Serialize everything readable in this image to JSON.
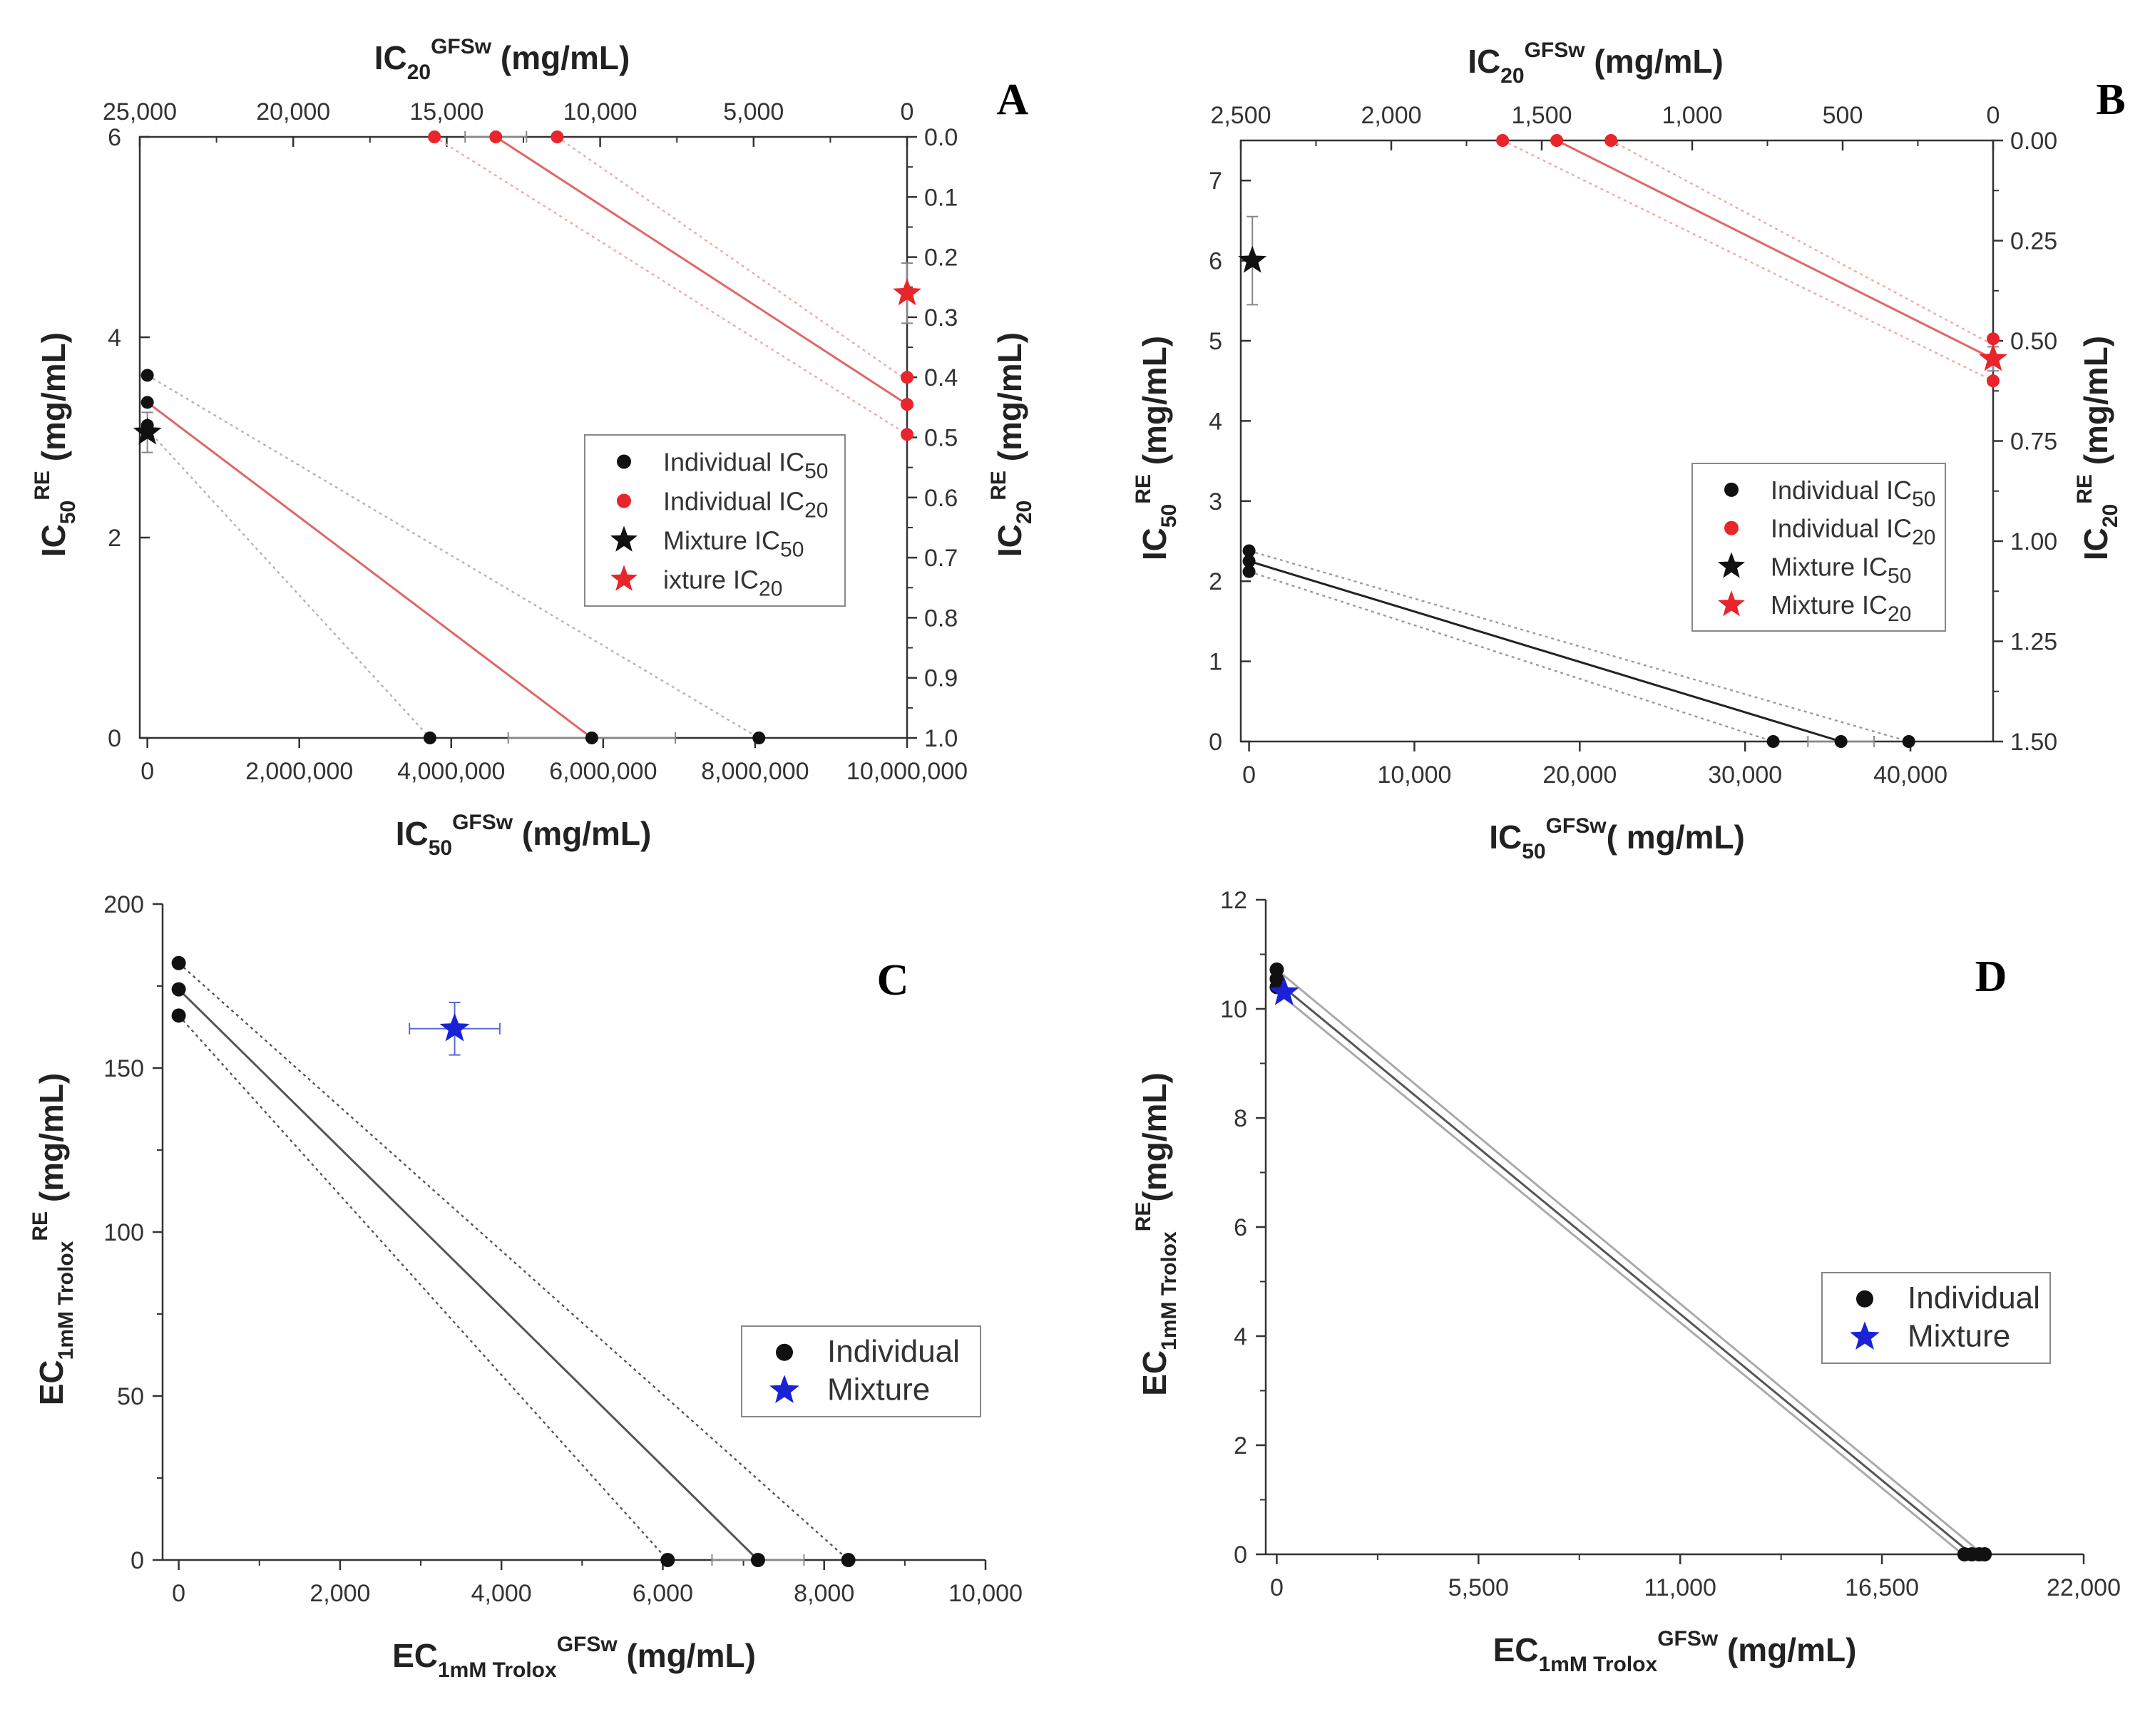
{
  "chart_data": [
    {
      "panel": "A",
      "type": "scatter",
      "title": "IC20GFSw (mg/mL)",
      "xlabel": "IC50GFSw (mg/mL)",
      "ylabel": "IC50RE (mg/mL)",
      "x2label": "IC20GFSw (mg/mL)",
      "y2label": "IC20RE (mg/mL)",
      "label_parts": {
        "top": [
          "IC",
          "20",
          "GFSw",
          " (mg/mL)"
        ],
        "bottom": [
          "IC",
          "50",
          "GFSw",
          " (mg/mL)"
        ],
        "left": [
          "IC",
          "50",
          "RE",
          " (mg/mL)"
        ],
        "right": [
          "IC",
          "20",
          "RE",
          " (mg/mL)"
        ]
      },
      "xlim": [
        -100000,
        10000000
      ],
      "ylim": [
        0,
        6
      ],
      "x2lim": [
        25000,
        0
      ],
      "y2lim": [
        1.0,
        0.0
      ],
      "x_ticks": [
        0,
        2000000,
        4000000,
        6000000,
        8000000,
        10000000
      ],
      "x_ticklabels": [
        "0",
        "2,000,000",
        "4,000,000",
        "6,000,000",
        "8,000,000",
        "10,000,000"
      ],
      "y_ticks": [
        0,
        2,
        4,
        6
      ],
      "y_ticklabels": [
        "0",
        "2",
        "4",
        "6"
      ],
      "x2_ticks": [
        25000,
        20000,
        15000,
        10000,
        5000,
        0
      ],
      "x2_ticklabels": [
        "25,000",
        "20,000",
        "15,000",
        "10,000",
        "5,000",
        "0"
      ],
      "y2_ticks": [
        0.0,
        0.1,
        0.2,
        0.3,
        0.4,
        0.5,
        0.6,
        0.7,
        0.8,
        0.9,
        1.0
      ],
      "y2_ticklabels": [
        "0.0",
        "0.1",
        "0.2",
        "0.3",
        "0.4",
        "0.5",
        "0.6",
        "0.7",
        "0.8",
        "0.9",
        "1.0"
      ],
      "lines": [
        {
          "axes": "primary",
          "role": "isobole-ic50",
          "color": "#e06666",
          "style": "solid",
          "from": [
            0,
            3.35
          ],
          "to": [
            5850000,
            0
          ]
        },
        {
          "axes": "primary",
          "role": "ci-ic50",
          "color": "#b4b4b4",
          "style": "dotted",
          "from": [
            0,
            3.62
          ],
          "to": [
            8050000,
            0
          ]
        },
        {
          "axes": "primary",
          "role": "ci-ic50",
          "color": "#b4b4b4",
          "style": "dotted",
          "from": [
            0,
            3.08
          ],
          "to": [
            3720000,
            0
          ]
        },
        {
          "axes": "secondary",
          "role": "isobole-ic20",
          "color": "#e06666",
          "style": "solid",
          "from": [
            13400,
            0.0
          ],
          "to": [
            0,
            0.445
          ]
        },
        {
          "axes": "secondary",
          "role": "ci-ic20",
          "color": "#f2a8a8",
          "style": "dotted",
          "from": [
            11400,
            0.0
          ],
          "to": [
            0,
            0.405
          ]
        },
        {
          "axes": "secondary",
          "role": "ci-ic20",
          "color": "#f2a8a8",
          "style": "dotted",
          "from": [
            15400,
            0.0
          ],
          "to": [
            0,
            0.495
          ]
        }
      ],
      "series": [
        {
          "name": "Individual IC50",
          "axes": "primary",
          "marker": "circle",
          "color": "#111111",
          "x": [
            3720000,
            5850000,
            8050000,
            0,
            0,
            0
          ],
          "y": [
            0,
            0,
            0,
            3.62,
            3.35,
            3.12
          ],
          "xerr": [
            0,
            1100000,
            0,
            0,
            0,
            0
          ],
          "yerr": [
            0,
            0,
            0,
            0,
            0,
            0
          ]
        },
        {
          "name": "Individual IC20",
          "axes": "secondary",
          "marker": "circle",
          "color": "#e8252b",
          "x": [
            15400,
            13400,
            11400,
            0,
            0,
            0
          ],
          "y": [
            0,
            0,
            0,
            0.4,
            0.445,
            0.495
          ],
          "xerr": [
            0,
            1000,
            0,
            0,
            0,
            0
          ],
          "yerr": [
            0,
            0,
            0,
            0,
            0,
            0
          ]
        },
        {
          "name": "Mixture IC50",
          "axes": "primary",
          "marker": "star",
          "color": "#111111",
          "x": [
            0
          ],
          "y": [
            3.05
          ],
          "xerr": [
            0
          ],
          "yerr": [
            0.2
          ]
        },
        {
          "name": "ixture IC20",
          "axes": "secondary",
          "marker": "star",
          "color": "#e8252b",
          "x": [
            0
          ],
          "y": [
            0.26
          ],
          "xerr": [
            0
          ],
          "yerr": [
            0.05
          ]
        }
      ],
      "legend": [
        "Individual IC50",
        "Individual IC20",
        "Mixture IC50",
        "ixture IC20"
      ],
      "legend_placement": "center-right",
      "grid": false
    },
    {
      "panel": "B",
      "type": "scatter",
      "title": "IC20GFSw (mg/mL)",
      "xlabel": "IC50GFSw( mg/mL)",
      "ylabel": "IC50RE (mg/mL)",
      "x2label": "IC20GFSw (mg/mL)",
      "y2label": "IC20RE (mg/mL)",
      "label_parts": {
        "top": [
          "IC",
          "20",
          "GFSw",
          " (mg/mL)"
        ],
        "bottom": [
          "IC",
          "50",
          "GFSw",
          "( mg/mL)"
        ],
        "left": [
          "IC",
          "50",
          "RE",
          " (mg/mL)"
        ],
        "right": [
          "IC",
          "20",
          "RE",
          " (mg/mL)"
        ]
      },
      "xlim": [
        -500,
        45000
      ],
      "ylim": [
        0,
        7.5
      ],
      "x2lim": [
        2500,
        0
      ],
      "y2lim": [
        1.5,
        0.0
      ],
      "x_ticks": [
        0,
        10000,
        20000,
        30000,
        40000
      ],
      "x_ticklabels": [
        "0",
        "10,000",
        "20,000",
        "30,000",
        "40,000"
      ],
      "y_ticks": [
        0,
        1,
        2,
        3,
        4,
        5,
        6,
        7
      ],
      "y_ticklabels": [
        "0",
        "1",
        "2",
        "3",
        "4",
        "5",
        "6",
        "7"
      ],
      "x2_ticks": [
        2500,
        2000,
        1500,
        1000,
        500,
        0
      ],
      "x2_ticklabels": [
        "2,500",
        "2,000",
        "1,500",
        "1,000",
        "500",
        "0"
      ],
      "y2_ticks": [
        0.0,
        0.25,
        0.5,
        0.75,
        1.0,
        1.25,
        1.5
      ],
      "y2_ticklabels": [
        "0.00",
        "0.25",
        "0.50",
        "0.75",
        "1.00",
        "1.25",
        "1.50"
      ],
      "lines": [
        {
          "axes": "primary",
          "role": "isobole-ic50",
          "color": "#222222",
          "style": "solid",
          "from": [
            0,
            2.25
          ],
          "to": [
            35800,
            0
          ]
        },
        {
          "axes": "primary",
          "role": "ci-ic50",
          "color": "#9a9a9a",
          "style": "dotted",
          "from": [
            0,
            2.38
          ],
          "to": [
            39900,
            0
          ]
        },
        {
          "axes": "primary",
          "role": "ci-ic50",
          "color": "#9a9a9a",
          "style": "dotted",
          "from": [
            0,
            2.12
          ],
          "to": [
            31700,
            0
          ]
        },
        {
          "axes": "secondary",
          "role": "isobole-ic20",
          "color": "#e06666",
          "style": "solid",
          "from": [
            1450,
            0.0
          ],
          "to": [
            0,
            0.545
          ]
        },
        {
          "axes": "secondary",
          "role": "ci-ic20",
          "color": "#f2a8a8",
          "style": "dotted",
          "from": [
            1270,
            0.0
          ],
          "to": [
            0,
            0.51
          ]
        },
        {
          "axes": "secondary",
          "role": "ci-ic20",
          "color": "#f2a8a8",
          "style": "dotted",
          "from": [
            1630,
            0.0
          ],
          "to": [
            0,
            0.6
          ]
        }
      ],
      "series": [
        {
          "name": "Individual IC50",
          "axes": "primary",
          "marker": "circle",
          "color": "#111111",
          "x": [
            31700,
            35800,
            39900,
            0,
            0,
            0
          ],
          "y": [
            0,
            0,
            0,
            2.38,
            2.25,
            2.12
          ],
          "xerr": [
            0,
            2000,
            0,
            0,
            0,
            0
          ],
          "yerr": [
            0,
            0,
            0,
            0,
            0,
            0
          ]
        },
        {
          "name": "Individual IC20",
          "axes": "secondary",
          "marker": "circle",
          "color": "#e8252b",
          "x": [
            1630,
            1450,
            1270,
            0,
            0,
            0
          ],
          "y": [
            0,
            0,
            0,
            0.495,
            0.545,
            0.6
          ],
          "xerr": [
            0,
            0,
            0,
            0,
            0,
            0
          ],
          "yerr": [
            0,
            0,
            0,
            0,
            0,
            0
          ]
        },
        {
          "name": "Mixture IC50",
          "axes": "primary",
          "marker": "star",
          "color": "#111111",
          "x": [
            200
          ],
          "y": [
            6.0
          ],
          "xerr": [
            0
          ],
          "yerr": [
            0.55
          ]
        },
        {
          "name": "Mixture IC20",
          "axes": "secondary",
          "marker": "star",
          "color": "#e8252b",
          "x": [
            0
          ],
          "y": [
            0.545
          ],
          "xerr": [
            0
          ],
          "yerr": [
            0.03
          ]
        }
      ],
      "legend": [
        "Individual IC50",
        "Individual IC20",
        "Mixture IC50",
        "Mixture IC20"
      ],
      "legend_placement": "center-right",
      "grid": false
    },
    {
      "panel": "C",
      "type": "scatter",
      "xlabel": "EC1mM TroloxGFSw (mg/mL)",
      "ylabel": "EC1mM TroloxRE (mg/mL)",
      "label_parts": {
        "bottom": [
          "EC",
          "1mM Trolox",
          "GFSw",
          " (mg/mL)"
        ],
        "left": [
          "EC",
          "1mM Trolox",
          "RE",
          " (mg/mL)"
        ]
      },
      "xlim": [
        -200,
        10000
      ],
      "ylim": [
        0,
        200
      ],
      "x_ticks": [
        0,
        2000,
        4000,
        6000,
        8000,
        10000
      ],
      "x_ticklabels": [
        "0",
        "2,000",
        "4,000",
        "6,000",
        "8,000",
        "10,000"
      ],
      "y_ticks": [
        0,
        50,
        100,
        150,
        200
      ],
      "y_ticklabels": [
        "0",
        "50",
        "100",
        "150",
        "200"
      ],
      "lines": [
        {
          "axes": "primary",
          "role": "isobole",
          "color": "#555555",
          "style": "solid",
          "from": [
            0,
            174
          ],
          "to": [
            7180,
            0
          ]
        },
        {
          "axes": "primary",
          "role": "ci",
          "color": "#555555",
          "style": "dotted",
          "from": [
            0,
            182
          ],
          "to": [
            8300,
            0
          ]
        },
        {
          "axes": "primary",
          "role": "ci",
          "color": "#555555",
          "style": "dotted",
          "from": [
            0,
            166
          ],
          "to": [
            6060,
            0
          ]
        }
      ],
      "series": [
        {
          "name": "Individual",
          "axes": "primary",
          "marker": "circle",
          "color": "#111111",
          "x": [
            6060,
            7180,
            8300,
            0,
            0,
            0
          ],
          "y": [
            0,
            0,
            0,
            182,
            174,
            166
          ],
          "xerr": [
            0,
            570,
            0,
            0,
            0,
            0
          ],
          "yerr": [
            0,
            0,
            0,
            0,
            0,
            0
          ]
        },
        {
          "name": "Mixture",
          "axes": "primary",
          "marker": "star",
          "color": "#1a22d6",
          "x": [
            3420
          ],
          "y": [
            162
          ],
          "xerr": [
            560
          ],
          "yerr": [
            8
          ]
        }
      ],
      "legend": [
        "Individual",
        "Mixture"
      ],
      "legend_placement": "center-right",
      "grid": false
    },
    {
      "panel": "D",
      "type": "scatter",
      "xlabel": "EC1mM TroloxGFSw (mg/mL)",
      "ylabel": "EC1mM TroloxRE(mg/mL)",
      "label_parts": {
        "bottom": [
          "EC",
          "1mM Trolox",
          "GFSw",
          " (mg/mL)"
        ],
        "left": [
          "EC",
          "1mM Trolox",
          "RE",
          "(mg/mL)"
        ]
      },
      "xlim": [
        -300,
        22000
      ],
      "ylim": [
        0,
        12
      ],
      "x_ticks": [
        0,
        5500,
        11000,
        16500,
        22000
      ],
      "x_ticklabels": [
        "0",
        "5,500",
        "11,000",
        "16,500",
        "22,000"
      ],
      "y_ticks": [
        0,
        2,
        4,
        6,
        8,
        10,
        12
      ],
      "y_ticklabels": [
        "0",
        "2",
        "4",
        "6",
        "8",
        "10",
        "12"
      ],
      "lines": [
        {
          "axes": "primary",
          "role": "isobole",
          "color": "#555555",
          "style": "solid",
          "from": [
            0,
            10.5
          ],
          "to": [
            18950,
            0
          ]
        },
        {
          "axes": "primary",
          "role": "ci",
          "color": "#aaaaaa",
          "style": "solid",
          "from": [
            0,
            10.72
          ],
          "to": [
            19250,
            0
          ]
        },
        {
          "axes": "primary",
          "role": "ci",
          "color": "#aaaaaa",
          "style": "solid",
          "from": [
            0,
            10.32
          ],
          "to": [
            18700,
            0
          ]
        }
      ],
      "series": [
        {
          "name": "Individual",
          "axes": "primary",
          "marker": "circle",
          "color": "#111111",
          "x": [
            18750,
            18950,
            19150,
            19300,
            0,
            0,
            0
          ],
          "y": [
            0,
            0,
            0,
            0,
            10.72,
            10.55,
            10.4
          ],
          "xerr": [
            0,
            0,
            0,
            0,
            0,
            0,
            0
          ],
          "yerr": [
            0,
            0,
            0,
            0,
            0,
            0,
            0
          ]
        },
        {
          "name": "Mixture",
          "axes": "primary",
          "marker": "star",
          "color": "#1a22d6",
          "x": [
            200
          ],
          "y": [
            10.3
          ],
          "xerr": [
            0
          ],
          "yerr": [
            0
          ]
        }
      ],
      "legend": [
        "Individual",
        "Mixture"
      ],
      "legend_placement": "center-right",
      "grid": false
    }
  ],
  "legend_parts": {
    "A": [
      [
        "Individual IC",
        "50"
      ],
      [
        "Individual IC",
        "20"
      ],
      [
        "Mixture IC",
        "50"
      ],
      [
        "ixture IC",
        "20"
      ]
    ],
    "B": [
      [
        "Individual IC",
        "50"
      ],
      [
        "Individual IC",
        "20"
      ],
      [
        "Mixture IC",
        "50"
      ],
      [
        "Mixture IC",
        "20"
      ]
    ],
    "C": [
      [
        "Individual",
        ""
      ],
      [
        "Mixture",
        ""
      ]
    ],
    "D": [
      [
        "Individual",
        ""
      ],
      [
        "Mixture",
        ""
      ]
    ]
  },
  "panel_letters": [
    "A",
    "B",
    "C",
    "D"
  ],
  "colors": {
    "black": "#111111",
    "red": "#e8252b",
    "blue": "#1a22d6",
    "axis": "#333333"
  }
}
